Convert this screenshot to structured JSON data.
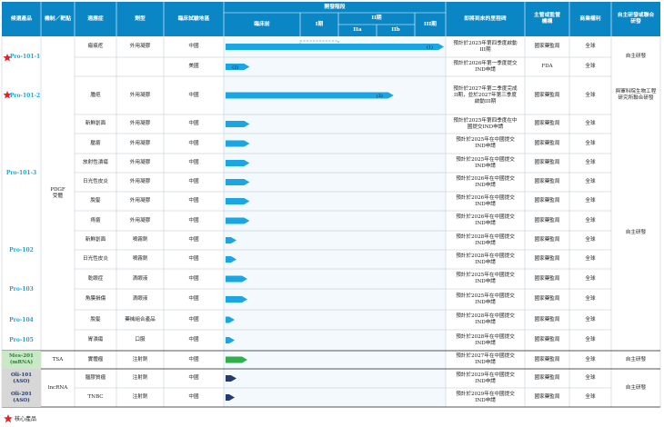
{
  "headers": {
    "candidate": "候選產品",
    "mechanism": "機制／靶點",
    "indication": "適應症",
    "dosage": "劑型",
    "region": "臨床試驗地區",
    "stage": "開發階段",
    "preclinical": "臨床前",
    "phase1": "I期",
    "phase2": "II期",
    "phase2a": "IIa",
    "phase2b": "IIb",
    "phase3": "III期",
    "milestone": "即將到來的里程碑",
    "regulator": "主管或監管機構",
    "rights": "商業權利",
    "dev": "自主研發或聯合研發"
  },
  "products": {
    "p101_1": "Pro-101-1",
    "p101_2": "Pro-101-2",
    "p101_3": "Pro-101-3",
    "p102": "Pro-102",
    "p103": "Pro-103",
    "p104": "Pro-104",
    "p105": "Pro-105",
    "mes201_a": "Mes-201",
    "mes201_b": "(mRNA)",
    "oli101_a": "Oli-101",
    "oli101_b": "(ASO)",
    "oli201_a": "Oli-201",
    "oli201_b": "(ASO)"
  },
  "mechanisms": {
    "pdgf_a": "PDGF",
    "pdgf_b": "受體",
    "tsa": "TSA",
    "lncrna": "lncRNA"
  },
  "rows": [
    {
      "indication": "瘢痕疙",
      "dosage": "外用凝膠",
      "region": "中國",
      "milestone": "預計於2025年第四季度啟動III期",
      "regulator": "國家藥監局",
      "rights": "全球",
      "bar_label": "(1)",
      "progress_pct": 100
    },
    {
      "indication": "",
      "dosage": "",
      "region": "美國",
      "milestone": "預計於2026年第一季度提交IND申請",
      "regulator": "FDA",
      "rights": "全球",
      "bar_label": "(2)",
      "progress_pct": 11
    },
    {
      "indication": "腫疤",
      "dosage": "外用凝膠",
      "region": "中國",
      "milestone": "預計於2027年第二季度完成II期，並於2027年第三季度啟動III期",
      "regulator": "國家藥監局",
      "rights": "全球",
      "bar_label": "(3)",
      "progress_pct": 77
    },
    {
      "indication": "新鮮創面",
      "dosage": "外用凝膠",
      "region": "中國",
      "milestone": "預計於2025年第四季度在中國提交IND申請",
      "regulator": "國家藥監局",
      "rights": "全球",
      "bar_label": "",
      "progress_pct": 11
    },
    {
      "indication": "壓瘡",
      "dosage": "外用凝膠",
      "region": "中國",
      "milestone": "預計於2025年在中國提交IND申請",
      "regulator": "國家藥監局",
      "rights": "全球",
      "bar_label": "",
      "progress_pct": 11
    },
    {
      "indication": "放射性潰瘍",
      "dosage": "外用凝膠",
      "region": "中國",
      "milestone": "預計於2025年在中國提交IND申請",
      "regulator": "國家藥監局",
      "rights": "全球",
      "bar_label": "",
      "progress_pct": 11
    },
    {
      "indication": "日光性皮炎",
      "dosage": "外用凝膠",
      "region": "中國",
      "milestone": "預計於2026年在中國提交IND申請",
      "regulator": "國家藥監局",
      "rights": "全球",
      "bar_label": "",
      "progress_pct": 11
    },
    {
      "indication": "脫髮",
      "dosage": "外用凝膠",
      "region": "中國",
      "milestone": "預計於2026年在中國提交IND申請",
      "regulator": "國家藥監局",
      "rights": "全球",
      "bar_label": "",
      "progress_pct": 11
    },
    {
      "indication": "痔瘡",
      "dosage": "外用凝膠",
      "region": "中國",
      "milestone": "預計於2026年在中國提交IND申請",
      "regulator": "國家藥監局",
      "rights": "全球",
      "bar_label": "",
      "progress_pct": 11
    },
    {
      "indication": "新鮮創面",
      "dosage": "噴霧劑",
      "region": "中國",
      "milestone": "預計於2028年在中國提交IND申請",
      "regulator": "國家藥監局",
      "rights": "全球",
      "bar_label": "",
      "progress_pct": 5
    },
    {
      "indication": "日光性皮炎",
      "dosage": "噴霧劑",
      "region": "中國",
      "milestone": "預計於2028年在中國提交IND申請",
      "regulator": "國家藥監局",
      "rights": "全球",
      "bar_label": "",
      "progress_pct": 5
    },
    {
      "indication": "乾眼症",
      "dosage": "滴眼液",
      "region": "中國",
      "milestone": "預計於2025年在中國提交IND申請",
      "regulator": "國家藥監局",
      "rights": "全球",
      "bar_label": "",
      "progress_pct": 10
    },
    {
      "indication": "角膜損傷",
      "dosage": "滴眼液",
      "region": "中國",
      "milestone": "預計於2025年在中國提交IND申請",
      "regulator": "國家藥監局",
      "rights": "全球",
      "bar_label": "",
      "progress_pct": 10
    },
    {
      "indication": "脫髮",
      "dosage": "藥械組合產品",
      "region": "中國",
      "milestone": "預計於2028年在中國提交IND申請",
      "regulator": "國家藥監局",
      "rights": "全球",
      "bar_label": "",
      "progress_pct": 3
    },
    {
      "indication": "胃潰瘍",
      "dosage": "口服",
      "region": "中國",
      "milestone": "預計於2028年在中國提交IND申請",
      "regulator": "國家藥監局",
      "rights": "全球",
      "bar_label": "",
      "progress_pct": 3
    },
    {
      "indication": "實體瘤",
      "dosage": "注射劑",
      "region": "中國",
      "milestone": "預計於2027年在中國提交IND申請",
      "regulator": "國家藥監局",
      "rights": "全球",
      "bar_label": "",
      "progress_pct": 10
    },
    {
      "indication": "腦膠質瘤",
      "dosage": "注射劑",
      "region": "中國",
      "milestone": "預計於2029年在中國提交IND申請",
      "regulator": "國家藥監局",
      "rights": "全球",
      "bar_label": "",
      "progress_pct": 5
    },
    {
      "indication": "TNBC",
      "dosage": "注射劑",
      "region": "中國",
      "milestone": "預計於2029年在中國提交IND申請",
      "regulator": "國家藥監局",
      "rights": "全球",
      "bar_label": "",
      "progress_pct": 3
    }
  ],
  "dev": {
    "self": "自主研發",
    "joint": "與軍科院生物工程研究所聯合研發"
  },
  "legend": {
    "star_label": "核心產品"
  },
  "colors": {
    "header": "#0b86c4",
    "bar_blue": "#19a6e2",
    "bar_green": "#2fb04c",
    "bar_navy": "#243a72",
    "mes_bg": "#c8e8c6",
    "oli_bg": "#d7d7d7",
    "star": "#e2232a"
  }
}
